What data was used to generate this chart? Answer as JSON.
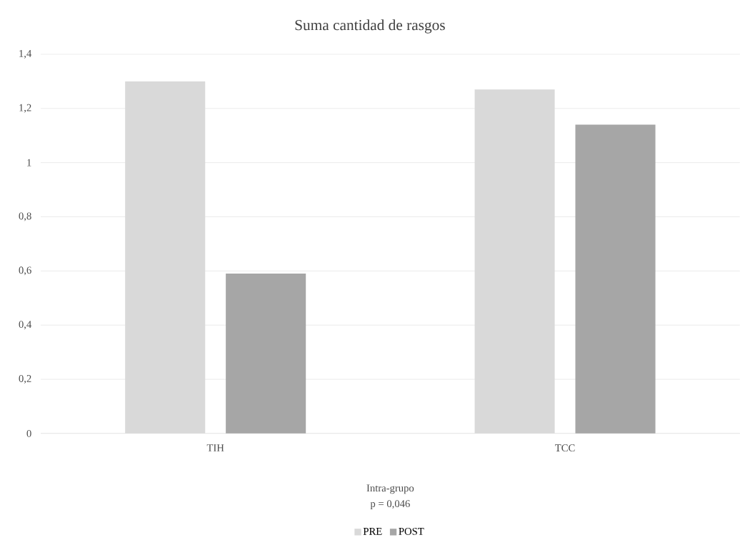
{
  "chart_data": {
    "type": "bar",
    "title": "Suma cantidad de rasgos",
    "xlabel": "Intra-grupo",
    "annotations": [
      "p = 0,046"
    ],
    "categories": [
      "TIH",
      "TCC"
    ],
    "series": [
      {
        "name": "PRE",
        "color": "#d9d9d9",
        "values": [
          1.3,
          1.27
        ]
      },
      {
        "name": "POST",
        "color": "#a6a6a6",
        "values": [
          0.59,
          1.14
        ]
      }
    ],
    "ylim": [
      0,
      1.4
    ],
    "yticks": [
      0,
      {
        "value": 0.2,
        "label": "0,2"
      },
      {
        "value": 0.4,
        "label": "0,4"
      },
      {
        "value": 0.6,
        "label": "0,6"
      },
      {
        "value": 0.8,
        "label": "0,8"
      },
      1,
      {
        "value": 1.2,
        "label": "1,2"
      },
      {
        "value": 1.4,
        "label": "1,4"
      }
    ],
    "grid": "y",
    "legend": "bottom"
  }
}
